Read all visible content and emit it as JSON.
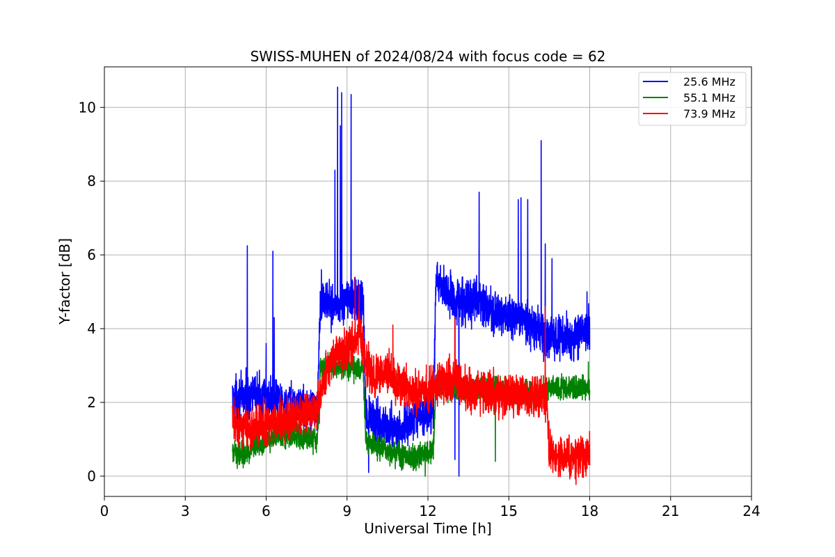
{
  "chart_data": {
    "type": "line",
    "title": "SWISS-MUHEN of 2024/08/24 with focus code = 62",
    "xlabel": "Universal Time [h]",
    "ylabel": "Y-factor [dB]",
    "xlim": [
      0,
      24
    ],
    "ylim": [
      -0.55,
      11.1
    ],
    "xticks": [
      0,
      3,
      6,
      9,
      12,
      15,
      18,
      21,
      24
    ],
    "xtick_labels": [
      "0",
      "3",
      "6",
      "9",
      "12",
      "15",
      "18",
      "21",
      "24"
    ],
    "yticks": [
      0,
      2,
      4,
      6,
      8,
      10
    ],
    "ytick_labels": [
      "0",
      "2",
      "4",
      "6",
      "8",
      "10"
    ],
    "grid": true,
    "legend_position": "top-right",
    "series": [
      {
        "name": "25.6 MHz",
        "color": "#0000ff",
        "x_range": [
          4.75,
          18.0
        ],
        "noise": 0.35,
        "keypoints": [
          [
            4.75,
            2.1
          ],
          [
            5.5,
            2.2
          ],
          [
            6.0,
            2.1
          ],
          [
            6.5,
            2.0
          ],
          [
            7.0,
            1.9
          ],
          [
            7.9,
            1.8
          ],
          [
            8.0,
            4.8
          ],
          [
            8.5,
            4.6
          ],
          [
            9.0,
            4.8
          ],
          [
            9.6,
            4.7
          ],
          [
            9.7,
            1.6
          ],
          [
            10.5,
            1.3
          ],
          [
            11.0,
            1.2
          ],
          [
            11.5,
            1.6
          ],
          [
            12.2,
            1.7
          ],
          [
            12.3,
            5.3
          ],
          [
            13.0,
            4.8
          ],
          [
            14.0,
            4.7
          ],
          [
            14.5,
            4.4
          ],
          [
            15.0,
            4.3
          ],
          [
            15.5,
            4.2
          ],
          [
            16.0,
            4.0
          ],
          [
            16.5,
            3.8
          ],
          [
            17.0,
            3.7
          ],
          [
            18.0,
            3.9
          ]
        ],
        "spikes": [
          [
            5.3,
            6.25
          ],
          [
            6.0,
            3.6
          ],
          [
            6.25,
            6.1
          ],
          [
            6.3,
            4.3
          ],
          [
            8.05,
            5.6
          ],
          [
            8.55,
            8.3
          ],
          [
            8.65,
            10.55
          ],
          [
            8.8,
            10.4
          ],
          [
            8.75,
            9.5
          ],
          [
            9.15,
            10.35
          ],
          [
            9.8,
            0.1
          ],
          [
            12.35,
            5.8
          ],
          [
            13.0,
            0.45
          ],
          [
            13.15,
            0.0
          ],
          [
            13.9,
            7.7
          ],
          [
            15.35,
            7.5
          ],
          [
            15.45,
            7.55
          ],
          [
            15.7,
            7.5
          ],
          [
            16.2,
            9.1
          ],
          [
            16.35,
            6.3
          ],
          [
            16.6,
            5.9
          ],
          [
            17.9,
            5.0
          ]
        ]
      },
      {
        "name": "55.1 MHz",
        "color": "#008000",
        "x_range": [
          4.75,
          18.0
        ],
        "noise": 0.2,
        "keypoints": [
          [
            4.75,
            0.6
          ],
          [
            5.5,
            0.7
          ],
          [
            6.0,
            1.0
          ],
          [
            7.0,
            1.1
          ],
          [
            7.9,
            1.0
          ],
          [
            8.0,
            2.9
          ],
          [
            8.5,
            3.0
          ],
          [
            9.0,
            3.0
          ],
          [
            9.6,
            2.9
          ],
          [
            9.7,
            0.9
          ],
          [
            10.5,
            0.7
          ],
          [
            11.0,
            0.6
          ],
          [
            11.5,
            0.5
          ],
          [
            12.2,
            0.7
          ],
          [
            12.3,
            2.5
          ],
          [
            13.0,
            2.4
          ],
          [
            14.0,
            2.4
          ],
          [
            15.0,
            2.3
          ],
          [
            16.0,
            2.2
          ],
          [
            16.5,
            2.4
          ],
          [
            17.0,
            2.4
          ],
          [
            18.0,
            2.4
          ]
        ],
        "spikes": [
          [
            11.9,
            0.0
          ],
          [
            14.5,
            0.4
          ],
          [
            17.95,
            3.1
          ]
        ]
      },
      {
        "name": "73.9 MHz",
        "color": "#ff0000",
        "x_range": [
          4.75,
          18.0
        ],
        "noise": 0.35,
        "keypoints": [
          [
            4.75,
            1.5
          ],
          [
            5.5,
            1.3
          ],
          [
            6.0,
            1.4
          ],
          [
            7.0,
            1.6
          ],
          [
            7.9,
            1.8
          ],
          [
            8.2,
            2.8
          ],
          [
            8.5,
            3.3
          ],
          [
            9.0,
            3.4
          ],
          [
            9.5,
            3.9
          ],
          [
            9.7,
            3.0
          ],
          [
            10.0,
            2.7
          ],
          [
            10.5,
            2.8
          ],
          [
            11.0,
            2.4
          ],
          [
            11.5,
            2.3
          ],
          [
            12.0,
            2.3
          ],
          [
            12.5,
            2.6
          ],
          [
            13.0,
            2.6
          ],
          [
            13.5,
            2.4
          ],
          [
            14.0,
            2.3
          ],
          [
            14.5,
            2.2
          ],
          [
            15.0,
            2.2
          ],
          [
            15.5,
            2.2
          ],
          [
            16.0,
            2.1
          ],
          [
            16.4,
            2.2
          ],
          [
            16.5,
            0.7
          ],
          [
            17.0,
            0.5
          ],
          [
            17.5,
            0.5
          ],
          [
            18.0,
            0.6
          ]
        ],
        "spikes": [
          [
            9.3,
            5.4
          ],
          [
            9.45,
            5.2
          ],
          [
            10.7,
            4.1
          ],
          [
            13.0,
            4.3
          ],
          [
            16.35,
            4.6
          ],
          [
            17.3,
            0.0
          ]
        ]
      }
    ]
  }
}
